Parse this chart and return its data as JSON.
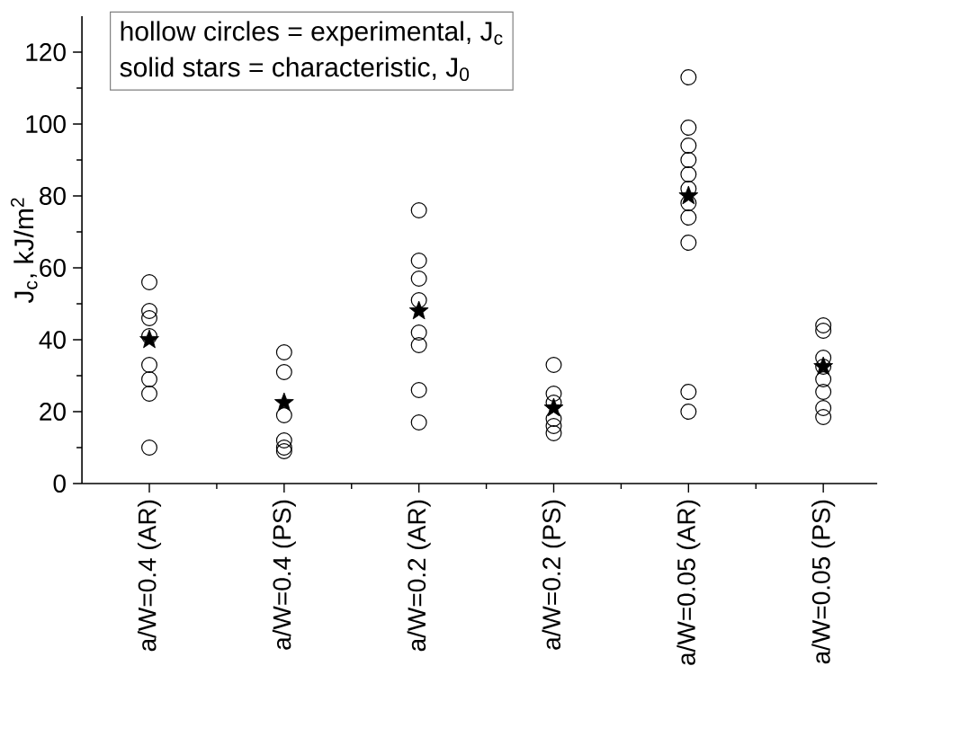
{
  "chart_data": {
    "type": "scatter",
    "ylabel": "J$_{c}$, kJ/m$^{2}$",
    "categories": [
      "a/W=0.4 (AR)",
      "a/W=0.4 (PS)",
      "a/W=0.2 (AR)",
      "a/W=0.2 (PS)",
      "a/W=0.05 (AR)",
      "a/W=0.05 (PS)"
    ],
    "ylim": [
      0,
      130
    ],
    "yticks": [
      0,
      20,
      40,
      60,
      80,
      100,
      120
    ],
    "annotations": [
      "hollow circles = experimental, J$_{c}$",
      "solid stars = characteristic, J$_{0}$"
    ],
    "series": [
      {
        "color": "#000000",
        "marker": "circle",
        "x": [
          "a/W=0.4 (AR)",
          "a/W=0.4 (AR)",
          "a/W=0.4 (AR)",
          "a/W=0.4 (AR)",
          "a/W=0.4 (AR)",
          "a/W=0.4 (AR)",
          "a/W=0.4 (AR)",
          "a/W=0.4 (AR)",
          "a/W=0.4 (PS)",
          "a/W=0.4 (PS)",
          "a/W=0.4 (PS)",
          "a/W=0.4 (PS)",
          "a/W=0.4 (PS)",
          "a/W=0.4 (PS)",
          "a/W=0.2 (AR)",
          "a/W=0.2 (AR)",
          "a/W=0.2 (AR)",
          "a/W=0.2 (AR)",
          "a/W=0.2 (AR)",
          "a/W=0.2 (AR)",
          "a/W=0.2 (AR)",
          "a/W=0.2 (AR)",
          "a/W=0.2 (PS)",
          "a/W=0.2 (PS)",
          "a/W=0.2 (PS)",
          "a/W=0.2 (PS)",
          "a/W=0.2 (PS)",
          "a/W=0.2 (PS)",
          "a/W=0.05 (AR)",
          "a/W=0.05 (AR)",
          "a/W=0.05 (AR)",
          "a/W=0.05 (AR)",
          "a/W=0.05 (AR)",
          "a/W=0.05 (AR)",
          "a/W=0.05 (AR)",
          "a/W=0.05 (AR)",
          "a/W=0.05 (AR)",
          "a/W=0.05 (AR)",
          "a/W=0.05 (AR)",
          "a/W=0.05 (PS)",
          "a/W=0.05 (PS)",
          "a/W=0.05 (PS)",
          "a/W=0.05 (PS)",
          "a/W=0.05 (PS)",
          "a/W=0.05 (PS)",
          "a/W=0.05 (PS)",
          "a/W=0.05 (PS)"
        ],
        "values": [
          56,
          48,
          46,
          41,
          33,
          29,
          25,
          10,
          36.5,
          31,
          19,
          12,
          10,
          9,
          76,
          62,
          57,
          51,
          42,
          38.5,
          26,
          17,
          33,
          25,
          22.5,
          18,
          16,
          14,
          113,
          99,
          94,
          90,
          86,
          82,
          78,
          74,
          67,
          25.5,
          20,
          44,
          42.5,
          35,
          32.5,
          29,
          25.5,
          21,
          18.5
        ]
      },
      {
        "color": "#000000",
        "marker": "star",
        "x": [
          "a/W=0.4 (AR)",
          "a/W=0.4 (PS)",
          "a/W=0.2 (AR)",
          "a/W=0.2 (PS)",
          "a/W=0.05 (AR)",
          "a/W=0.05 (PS)"
        ],
        "values": [
          40,
          22.5,
          48,
          21,
          80,
          32.5
        ]
      }
    ]
  }
}
